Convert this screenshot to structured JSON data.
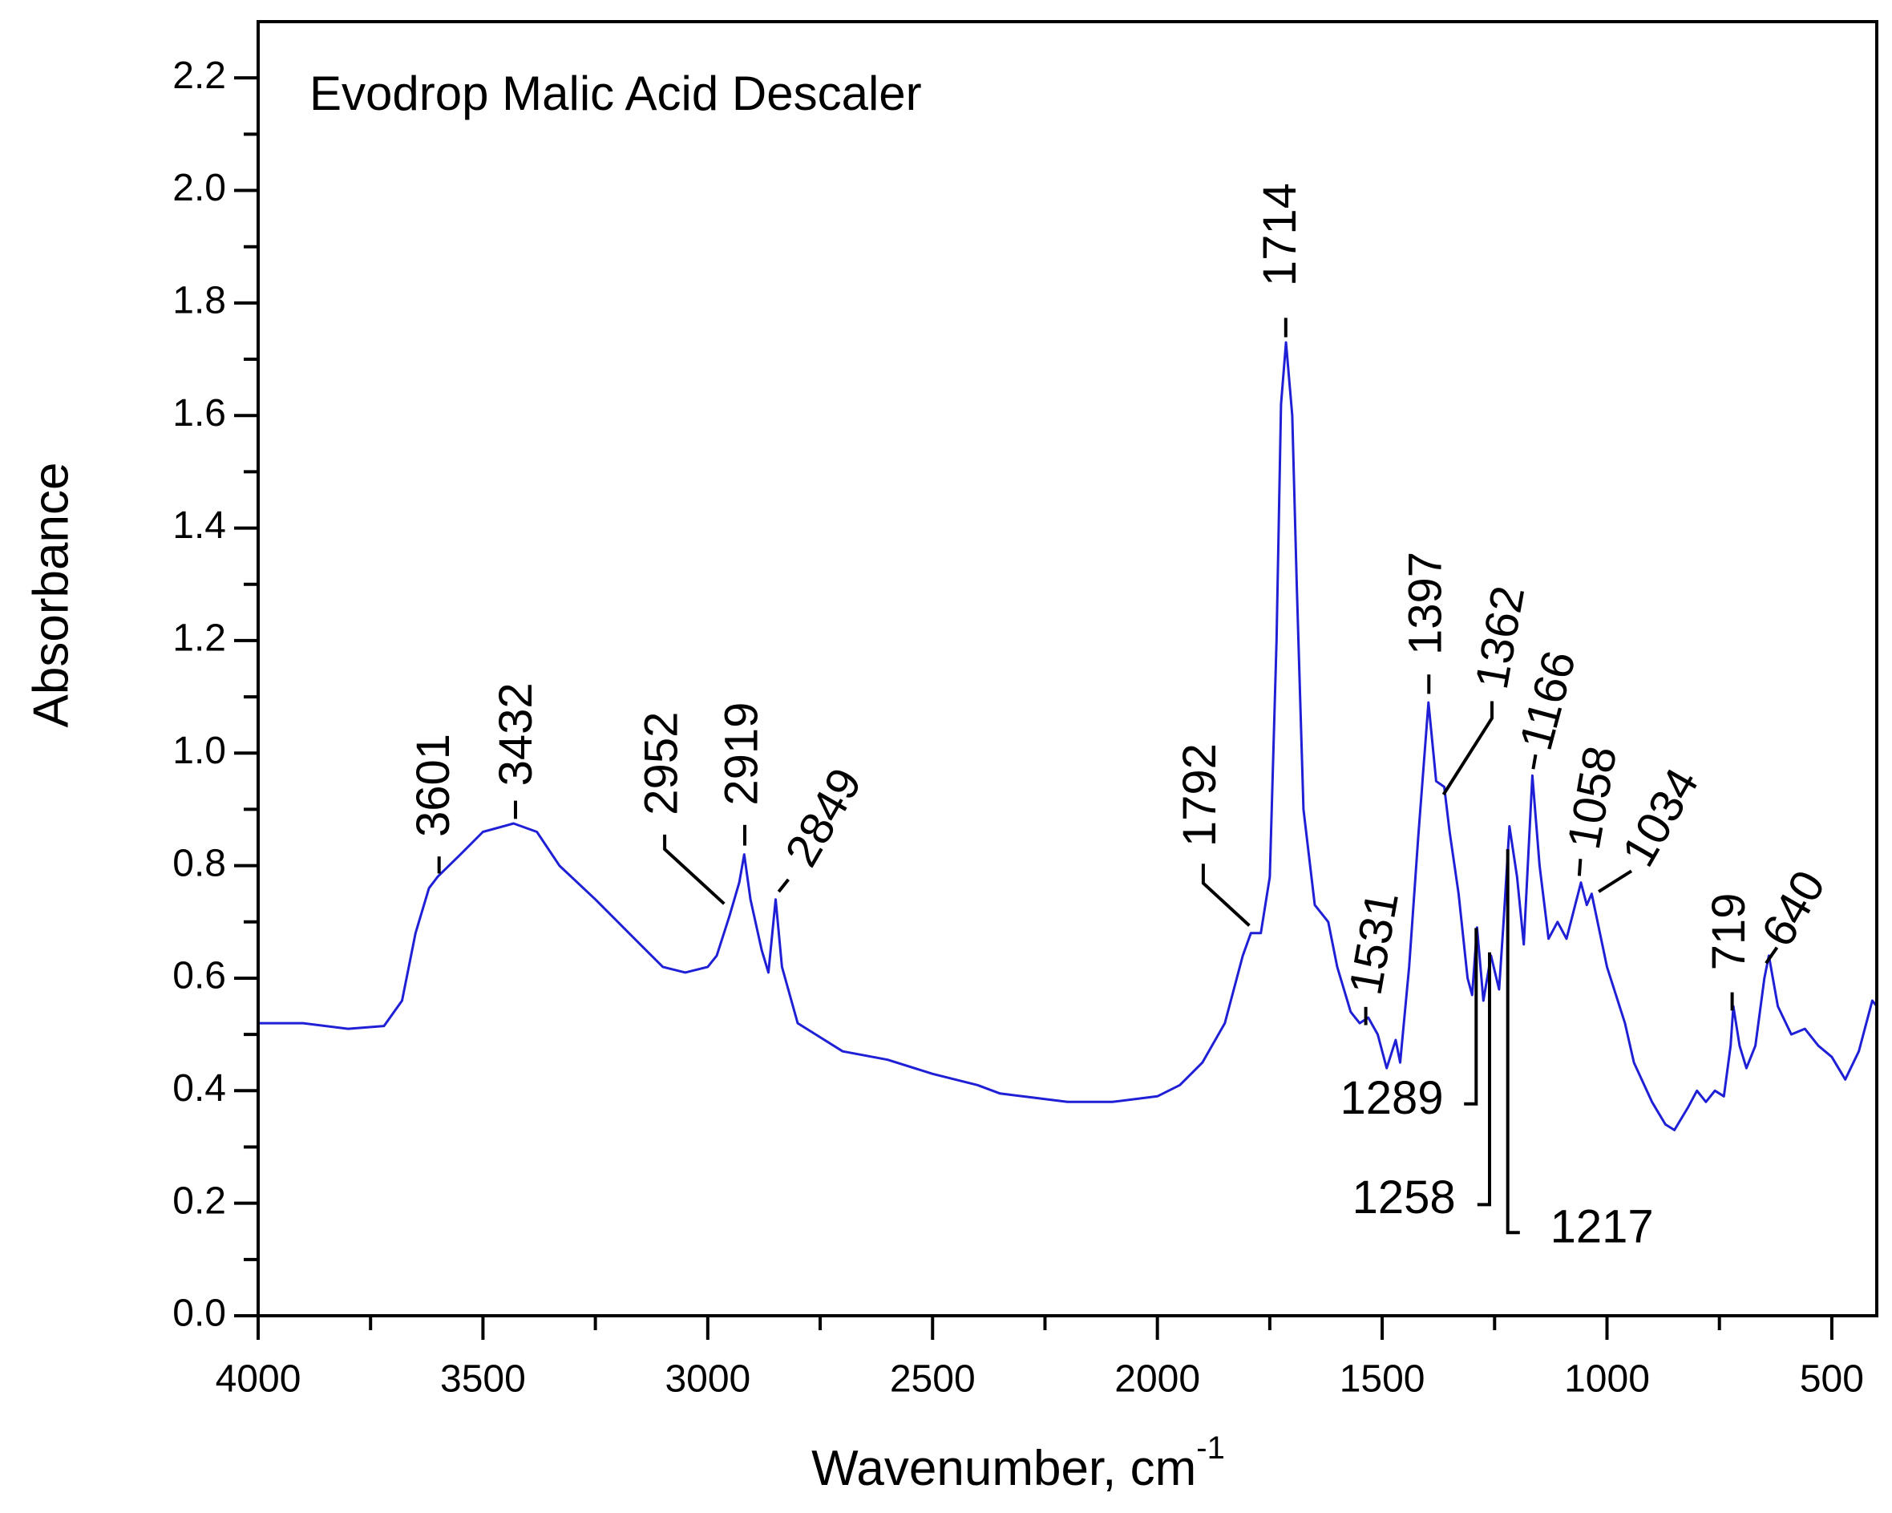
{
  "chart_data": {
    "type": "line",
    "title": "Evodrop Malic Acid Descaler",
    "xlabel": "Wavenumber, cm",
    "xlabel_superscript": "-1",
    "ylabel": "Absorbance",
    "color": "#1f1fd6",
    "xlim": [
      4000,
      400
    ],
    "ylim": [
      0,
      2.3
    ],
    "xticks": [
      4000,
      3500,
      3000,
      2500,
      2000,
      1500,
      1000,
      500
    ],
    "xminorticks": [
      3750,
      3250,
      2750,
      2250,
      1750,
      1250,
      750
    ],
    "yticks": [
      {
        "value": 0,
        "label": "0.0"
      },
      0.2,
      0.4,
      0.6,
      0.8,
      {
        "value": 1,
        "label": "1.0"
      },
      1.2,
      1.4,
      1.6,
      1.8,
      {
        "value": 2,
        "label": "2.0"
      },
      2.2
    ],
    "yminorticks": [
      0.1,
      0.3,
      0.5,
      0.7,
      0.9,
      1.1,
      1.3,
      1.5,
      1.7,
      1.9,
      2.1
    ],
    "x": [
      4000,
      3900,
      3800,
      3720,
      3680,
      3650,
      3620,
      3601,
      3550,
      3500,
      3432,
      3380,
      3330,
      3250,
      3150,
      3100,
      3050,
      3000,
      2980,
      2952,
      2930,
      2919,
      2905,
      2880,
      2865,
      2849,
      2835,
      2800,
      2700,
      2600,
      2500,
      2400,
      2350,
      2300,
      2200,
      2100,
      2000,
      1950,
      1900,
      1850,
      1810,
      1792,
      1770,
      1750,
      1735,
      1725,
      1714,
      1700,
      1690,
      1675,
      1650,
      1620,
      1600,
      1570,
      1550,
      1531,
      1510,
      1490,
      1470,
      1460,
      1440,
      1420,
      1397,
      1380,
      1362,
      1350,
      1330,
      1310,
      1300,
      1289,
      1275,
      1258,
      1240,
      1230,
      1217,
      1200,
      1185,
      1166,
      1150,
      1130,
      1110,
      1090,
      1058,
      1045,
      1034,
      1000,
      960,
      940,
      900,
      870,
      850,
      820,
      800,
      780,
      760,
      740,
      725,
      719,
      705,
      690,
      670,
      650,
      640,
      620,
      590,
      560,
      530,
      500,
      470,
      440,
      410,
      400
    ],
    "values": [
      0.52,
      0.52,
      0.51,
      0.515,
      0.56,
      0.68,
      0.76,
      0.78,
      0.82,
      0.86,
      0.875,
      0.86,
      0.8,
      0.74,
      0.66,
      0.62,
      0.61,
      0.62,
      0.64,
      0.71,
      0.77,
      0.82,
      0.74,
      0.65,
      0.61,
      0.74,
      0.62,
      0.52,
      0.47,
      0.455,
      0.43,
      0.41,
      0.395,
      0.39,
      0.38,
      0.38,
      0.39,
      0.41,
      0.45,
      0.52,
      0.64,
      0.68,
      0.68,
      0.78,
      1.2,
      1.62,
      1.73,
      1.6,
      1.3,
      0.9,
      0.73,
      0.7,
      0.62,
      0.54,
      0.52,
      0.53,
      0.5,
      0.44,
      0.49,
      0.45,
      0.62,
      0.85,
      1.09,
      0.95,
      0.94,
      0.86,
      0.75,
      0.6,
      0.57,
      0.69,
      0.56,
      0.64,
      0.58,
      0.7,
      0.87,
      0.78,
      0.66,
      0.96,
      0.8,
      0.67,
      0.7,
      0.67,
      0.77,
      0.73,
      0.75,
      0.62,
      0.52,
      0.45,
      0.38,
      0.34,
      0.33,
      0.37,
      0.4,
      0.38,
      0.4,
      0.39,
      0.48,
      0.55,
      0.48,
      0.44,
      0.48,
      0.6,
      0.64,
      0.55,
      0.5,
      0.51,
      0.48,
      0.46,
      0.42,
      0.47,
      0.56,
      0.55
    ],
    "peaks": [
      3601,
      3432,
      2952,
      2919,
      2849,
      1792,
      1714,
      1531,
      1397,
      1362,
      1289,
      1258,
      1217,
      1166,
      1058,
      1034,
      719,
      640
    ]
  }
}
